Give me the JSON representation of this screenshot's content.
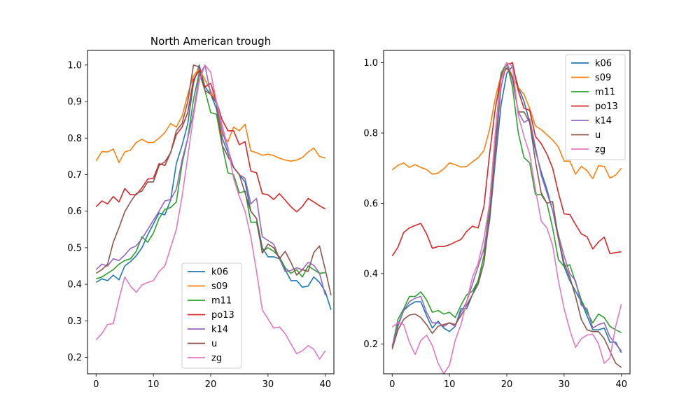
{
  "chart_data": [
    {
      "type": "line",
      "title": "North American trough",
      "xlim": [
        -1.5,
        41.5
      ],
      "ylim": [
        0.155,
        1.04
      ],
      "xticks": [
        0,
        10,
        20,
        30,
        40
      ],
      "yticks": [
        0.2,
        0.3,
        0.4,
        0.5,
        0.6,
        0.7,
        0.8,
        0.9,
        1.0
      ],
      "ytick_labels": [
        "0.2",
        "0.3",
        "0.4",
        "0.5",
        "0.6",
        "0.7",
        "0.8",
        "0.9",
        "1.0"
      ],
      "legend_position": "lower-center",
      "series": [
        {
          "name": "k06",
          "color": "#1f77b4",
          "values": [
            0.405,
            0.415,
            0.41,
            0.425,
            0.412,
            0.45,
            0.462,
            0.478,
            0.5,
            0.535,
            0.565,
            0.595,
            0.59,
            0.63,
            0.73,
            0.78,
            0.84,
            0.95,
            1.0,
            0.94,
            0.92,
            0.88,
            0.8,
            0.76,
            0.72,
            0.7,
            0.68,
            0.6,
            0.58,
            0.5,
            0.475,
            0.475,
            0.47,
            0.44,
            0.41,
            0.41,
            0.392,
            0.395,
            0.42,
            0.405,
            0.38,
            0.33
          ]
        },
        {
          "name": "s09",
          "color": "#ff7f0e",
          "values": [
            0.738,
            0.763,
            0.762,
            0.77,
            0.733,
            0.762,
            0.767,
            0.788,
            0.797,
            0.788,
            0.788,
            0.8,
            0.815,
            0.84,
            0.83,
            0.86,
            0.92,
            0.97,
            0.99,
            0.96,
            0.93,
            0.9,
            0.81,
            0.79,
            0.83,
            0.82,
            0.838,
            0.765,
            0.76,
            0.753,
            0.756,
            0.752,
            0.745,
            0.74,
            0.737,
            0.74,
            0.747,
            0.762,
            0.773,
            0.75,
            0.745
          ]
        },
        {
          "name": "m11",
          "color": "#2ca02c",
          "values": [
            0.415,
            0.42,
            0.43,
            0.44,
            0.455,
            0.465,
            0.47,
            0.49,
            0.53,
            0.515,
            0.54,
            0.58,
            0.605,
            0.61,
            0.625,
            0.73,
            0.8,
            0.905,
            0.98,
            0.93,
            0.87,
            0.865,
            0.78,
            0.705,
            0.7,
            0.65,
            0.655,
            0.57,
            0.57,
            0.49,
            0.5,
            0.49,
            0.475,
            0.445,
            0.43,
            0.44,
            0.42,
            0.45,
            0.44,
            0.43,
            0.432
          ]
        },
        {
          "name": "po13",
          "color": "#d62728",
          "values": [
            0.612,
            0.628,
            0.62,
            0.64,
            0.625,
            0.662,
            0.645,
            0.645,
            0.664,
            0.688,
            0.69,
            0.73,
            0.725,
            0.76,
            0.81,
            0.83,
            0.87,
            0.96,
            0.985,
            0.94,
            0.95,
            0.9,
            0.85,
            0.82,
            0.82,
            0.782,
            0.79,
            0.71,
            0.705,
            0.648,
            0.645,
            0.632,
            0.648,
            0.63,
            0.612,
            0.598,
            0.613,
            0.635,
            0.625,
            0.615,
            0.606
          ]
        },
        {
          "name": "k14",
          "color": "#9467bd",
          "values": [
            0.44,
            0.455,
            0.45,
            0.47,
            0.465,
            0.48,
            0.498,
            0.505,
            0.525,
            0.55,
            0.575,
            0.6,
            0.628,
            0.632,
            0.66,
            0.74,
            0.8,
            0.87,
            0.97,
            1.0,
            0.92,
            0.9,
            0.82,
            0.77,
            0.72,
            0.7,
            0.69,
            0.62,
            0.635,
            0.53,
            0.52,
            0.51,
            0.47,
            0.435,
            0.438,
            0.445,
            0.44,
            0.46,
            0.452,
            0.43,
            0.37
          ]
        },
        {
          "name": "u",
          "color": "#8c564b",
          "values": [
            0.43,
            0.44,
            0.455,
            0.515,
            0.555,
            0.598,
            0.625,
            0.648,
            0.655,
            0.68,
            0.68,
            0.725,
            0.735,
            0.76,
            0.82,
            0.84,
            0.9,
            1.0,
            0.995,
            0.93,
            0.92,
            0.895,
            0.78,
            0.75,
            0.72,
            0.7,
            0.65,
            0.6,
            0.58,
            0.485,
            0.51,
            0.5,
            0.47,
            0.49,
            0.46,
            0.425,
            0.44,
            0.435,
            0.487,
            0.505,
            0.44,
            0.37
          ]
        },
        {
          "name": "zg",
          "color": "#e377c2",
          "values": [
            0.248,
            0.265,
            0.29,
            0.292,
            0.36,
            0.42,
            0.395,
            0.378,
            0.398,
            0.405,
            0.41,
            0.435,
            0.45,
            0.5,
            0.55,
            0.64,
            0.75,
            0.86,
            0.955,
            1.0,
            0.98,
            0.9,
            0.835,
            0.775,
            0.69,
            0.64,
            0.6,
            0.53,
            0.435,
            0.33,
            0.305,
            0.28,
            0.283,
            0.265,
            0.237,
            0.21,
            0.218,
            0.232,
            0.222,
            0.195,
            0.218
          ]
        }
      ]
    },
    {
      "type": "line",
      "title": "",
      "xlim": [
        -1.5,
        41.5
      ],
      "ylim": [
        0.115,
        1.035
      ],
      "xticks": [
        0,
        10,
        20,
        30,
        40
      ],
      "yticks": [
        0.2,
        0.4,
        0.6,
        0.8,
        1.0
      ],
      "ytick_labels": [
        "0.2",
        "0.4",
        "0.6",
        "0.8",
        "1.0"
      ],
      "legend_position": "upper-right",
      "series": [
        {
          "name": "k06",
          "color": "#1f77b4",
          "values": [
            0.19,
            0.255,
            0.295,
            0.31,
            0.32,
            0.32,
            0.28,
            0.245,
            0.265,
            0.245,
            0.235,
            0.25,
            0.3,
            0.3,
            0.34,
            0.38,
            0.45,
            0.55,
            0.72,
            0.88,
            0.97,
            0.99,
            0.93,
            0.89,
            0.83,
            0.75,
            0.69,
            0.64,
            0.58,
            0.5,
            0.42,
            0.38,
            0.35,
            0.32,
            0.28,
            0.24,
            0.24,
            0.245,
            0.205,
            0.205,
            0.175
          ]
        },
        {
          "name": "s09",
          "color": "#ff7f0e",
          "values": [
            0.695,
            0.708,
            0.715,
            0.702,
            0.71,
            0.702,
            0.696,
            0.683,
            0.686,
            0.698,
            0.715,
            0.71,
            0.703,
            0.705,
            0.718,
            0.73,
            0.75,
            0.81,
            0.9,
            0.965,
            1.0,
            0.96,
            0.93,
            0.91,
            0.87,
            0.82,
            0.81,
            0.795,
            0.78,
            0.76,
            0.72,
            0.72,
            0.683,
            0.705,
            0.693,
            0.67,
            0.707,
            0.705,
            0.672,
            0.68,
            0.7
          ]
        },
        {
          "name": "m11",
          "color": "#2ca02c",
          "values": [
            0.19,
            0.27,
            0.3,
            0.335,
            0.335,
            0.348,
            0.325,
            0.29,
            0.295,
            0.285,
            0.29,
            0.275,
            0.31,
            0.34,
            0.35,
            0.38,
            0.45,
            0.6,
            0.8,
            0.97,
            1.0,
            0.93,
            0.8,
            0.73,
            0.715,
            0.625,
            0.625,
            0.6,
            0.53,
            0.44,
            0.42,
            0.425,
            0.375,
            0.325,
            0.29,
            0.26,
            0.285,
            0.275,
            0.25,
            0.24,
            0.232
          ]
        },
        {
          "name": "po13",
          "color": "#d62728",
          "values": [
            0.45,
            0.475,
            0.517,
            0.53,
            0.537,
            0.543,
            0.513,
            0.472,
            0.477,
            0.477,
            0.482,
            0.49,
            0.497,
            0.52,
            0.535,
            0.53,
            0.59,
            0.74,
            0.87,
            0.96,
            0.995,
            1.0,
            0.92,
            0.87,
            0.865,
            0.79,
            0.77,
            0.74,
            0.7,
            0.63,
            0.57,
            0.568,
            0.54,
            0.513,
            0.505,
            0.47,
            0.49,
            0.504,
            0.457,
            0.46,
            0.462
          ]
        },
        {
          "name": "k14",
          "color": "#9467bd",
          "values": [
            0.195,
            0.25,
            0.295,
            0.32,
            0.33,
            0.335,
            0.29,
            0.26,
            0.26,
            0.25,
            0.26,
            0.25,
            0.29,
            0.32,
            0.37,
            0.42,
            0.47,
            0.57,
            0.74,
            0.93,
            1.0,
            0.95,
            0.86,
            0.83,
            0.84,
            0.76,
            0.68,
            0.63,
            0.58,
            0.51,
            0.45,
            0.4,
            0.38,
            0.31,
            0.3,
            0.245,
            0.255,
            0.26,
            0.22,
            0.2,
            0.18
          ]
        },
        {
          "name": "u",
          "color": "#8c564b",
          "values": [
            0.185,
            0.24,
            0.27,
            0.282,
            0.285,
            0.275,
            0.255,
            0.23,
            0.25,
            0.255,
            0.26,
            0.255,
            0.28,
            0.31,
            0.34,
            0.37,
            0.43,
            0.56,
            0.76,
            0.96,
            0.985,
            0.96,
            0.86,
            0.86,
            0.83,
            0.72,
            0.63,
            0.6,
            0.605,
            0.5,
            0.43,
            0.39,
            0.335,
            0.27,
            0.24,
            0.235,
            0.235,
            0.215,
            0.18,
            0.145,
            0.133
          ]
        },
        {
          "name": "zg",
          "color": "#e377c2",
          "values": [
            0.248,
            0.26,
            0.255,
            0.205,
            0.17,
            0.21,
            0.225,
            0.195,
            0.145,
            0.115,
            0.14,
            0.21,
            0.255,
            0.32,
            0.39,
            0.43,
            0.5,
            0.6,
            0.8,
            0.95,
            1.0,
            0.99,
            0.85,
            0.79,
            0.74,
            0.64,
            0.55,
            0.53,
            0.48,
            0.38,
            0.3,
            0.24,
            0.19,
            0.215,
            0.225,
            0.228,
            0.2,
            0.145,
            0.16,
            0.25,
            0.313
          ]
        }
      ]
    }
  ]
}
